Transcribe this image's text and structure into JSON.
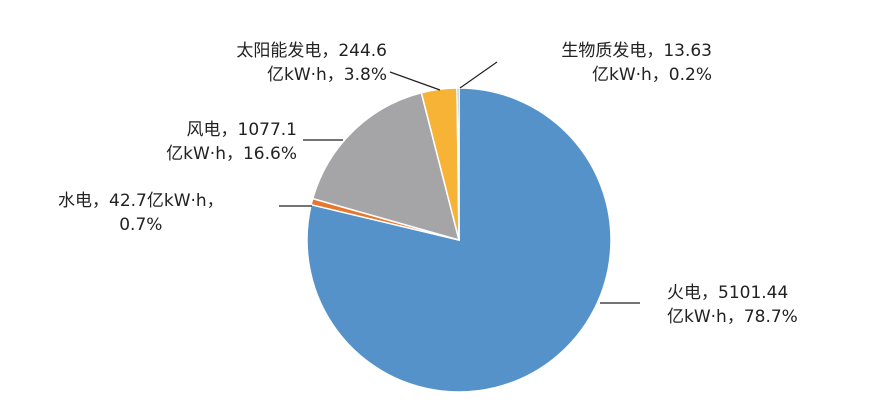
{
  "chart_data": {
    "type": "pie",
    "start": "top",
    "direction": "clockwise",
    "slices": [
      {
        "name": "火电",
        "value": 5101.44,
        "percent": 78.7,
        "color": "#5592C9",
        "label_line1": "火电，5101.44",
        "label_line2": "亿kW·h，78.7%"
      },
      {
        "name": "水电",
        "value": 42.7,
        "percent": 0.7,
        "color": "#E8772E",
        "label_line1": "水电，42.7亿kW·h，",
        "label_line2": "0.7%"
      },
      {
        "name": "风电",
        "value": 1077.1,
        "percent": 16.6,
        "color": "#A5A5A8",
        "label_line1": "风电，1077.1",
        "label_line2": "亿kW·h，16.6%"
      },
      {
        "name": "太阳能发电",
        "value": 244.6,
        "percent": 3.8,
        "color": "#F6B336",
        "label_line1": "太阳能发电，244.6",
        "label_line2": "亿kW·h，3.8%"
      },
      {
        "name": "生物质发电",
        "value": 13.63,
        "percent": 0.2,
        "color": "#3F6FB5",
        "label_line1": "生物质发电，13.63",
        "label_line2": "亿kW·h，0.2%"
      }
    ]
  }
}
